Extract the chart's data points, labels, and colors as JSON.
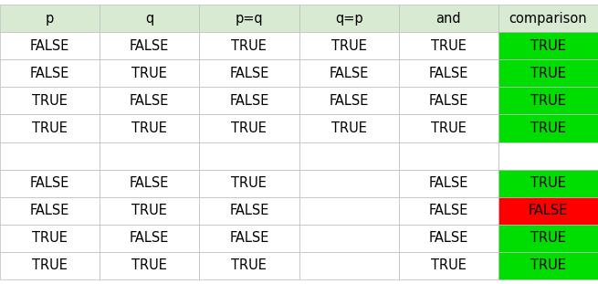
{
  "header": [
    "p",
    "q",
    "p=q",
    "q=p",
    "and",
    "comparison"
  ],
  "header_bg": "#d9ead3",
  "table1": [
    [
      "FALSE",
      "FALSE",
      "TRUE",
      "TRUE",
      "TRUE",
      "TRUE"
    ],
    [
      "FALSE",
      "TRUE",
      "FALSE",
      "FALSE",
      "FALSE",
      "TRUE"
    ],
    [
      "TRUE",
      "FALSE",
      "FALSE",
      "FALSE",
      "FALSE",
      "TRUE"
    ],
    [
      "TRUE",
      "TRUE",
      "TRUE",
      "TRUE",
      "TRUE",
      "TRUE"
    ]
  ],
  "table2": [
    [
      "FALSE",
      "FALSE",
      "TRUE",
      "",
      "FALSE",
      "TRUE"
    ],
    [
      "FALSE",
      "TRUE",
      "FALSE",
      "",
      "FALSE",
      "FALSE"
    ],
    [
      "TRUE",
      "FALSE",
      "FALSE",
      "",
      "FALSE",
      "TRUE"
    ],
    [
      "TRUE",
      "TRUE",
      "TRUE",
      "",
      "TRUE",
      "TRUE"
    ]
  ],
  "comparison_colors_t1": [
    "#00dd00",
    "#00dd00",
    "#00dd00",
    "#00dd00"
  ],
  "comparison_colors_t2": [
    "#00dd00",
    "#ff0000",
    "#00dd00",
    "#00dd00"
  ],
  "comparison_text_color": "#000000",
  "cell_bg": "#ffffff",
  "grid_color": "#bbbbbb",
  "header_text_color": "#000000",
  "body_text_color": "#000000",
  "font_size": 10.5,
  "header_font_size": 10.5,
  "fig_width": 6.55,
  "fig_height": 3.11,
  "dpi": 100
}
